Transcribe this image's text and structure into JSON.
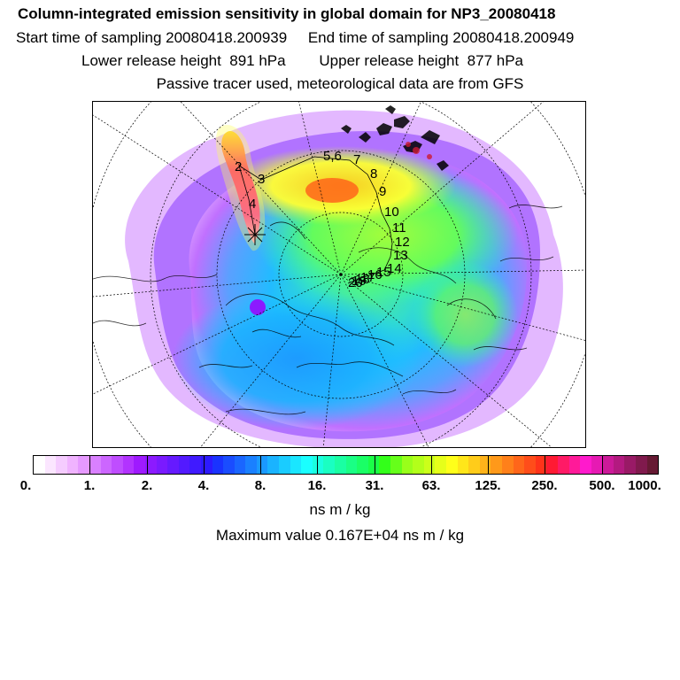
{
  "header": {
    "title": "Column-integrated emission sensitivity in global domain for NP3_20080418",
    "sampling": "Start time of sampling 20080418.200939     End time of sampling 20080418.200949",
    "release": "Lower release height  891 hPa        Upper release height  877 hPa",
    "note": "Passive tracer used, meteorological data are from GFS"
  },
  "map": {
    "trajectory_labels": [
      "2",
      "3",
      "4",
      "5,6",
      "7",
      "8",
      "9",
      "10",
      "11",
      "12",
      "13",
      "14",
      "15",
      "16",
      "17",
      "18",
      "19",
      "20"
    ],
    "release_marker": "release-point"
  },
  "colorbar": {
    "colors": [
      "#ffffff",
      "#fbe6ff",
      "#f5ccff",
      "#f0b3ff",
      "#e699ff",
      "#d980ff",
      "#cc66ff",
      "#bf4dff",
      "#b233ff",
      "#9f1aff",
      "#8c1aff",
      "#7a1aff",
      "#661aff",
      "#531aff",
      "#401aff",
      "#2d1aff",
      "#1a33ff",
      "#1a4dff",
      "#1a66ff",
      "#1a80ff",
      "#1a99ff",
      "#1ab3ff",
      "#1accff",
      "#1ae6ff",
      "#1affff",
      "#1affe0",
      "#1affc2",
      "#1affa3",
      "#1aff85",
      "#1aff66",
      "#1aff47",
      "#33ff1a",
      "#66ff1a",
      "#99ff1a",
      "#b3ff1a",
      "#ccff1a",
      "#e6ff1a",
      "#ffff1a",
      "#ffe61a",
      "#ffcc1a",
      "#ffb31a",
      "#ff991a",
      "#ff801a",
      "#ff661a",
      "#ff4d1a",
      "#ff331a",
      "#ff1a33",
      "#ff1a66",
      "#ff1a99",
      "#ff1acc",
      "#e61ab3",
      "#cc1a99",
      "#b31a80",
      "#991a66",
      "#801a4d",
      "#661a33"
    ],
    "labels": [
      "0.",
      "1.",
      "2.",
      "4.",
      "8.",
      "16.",
      "31.",
      "63.",
      "125.",
      "250.",
      "500.",
      "1000."
    ],
    "units": "ns m / kg"
  },
  "max_value": "Maximum value  0.167E+04 ns m / kg"
}
